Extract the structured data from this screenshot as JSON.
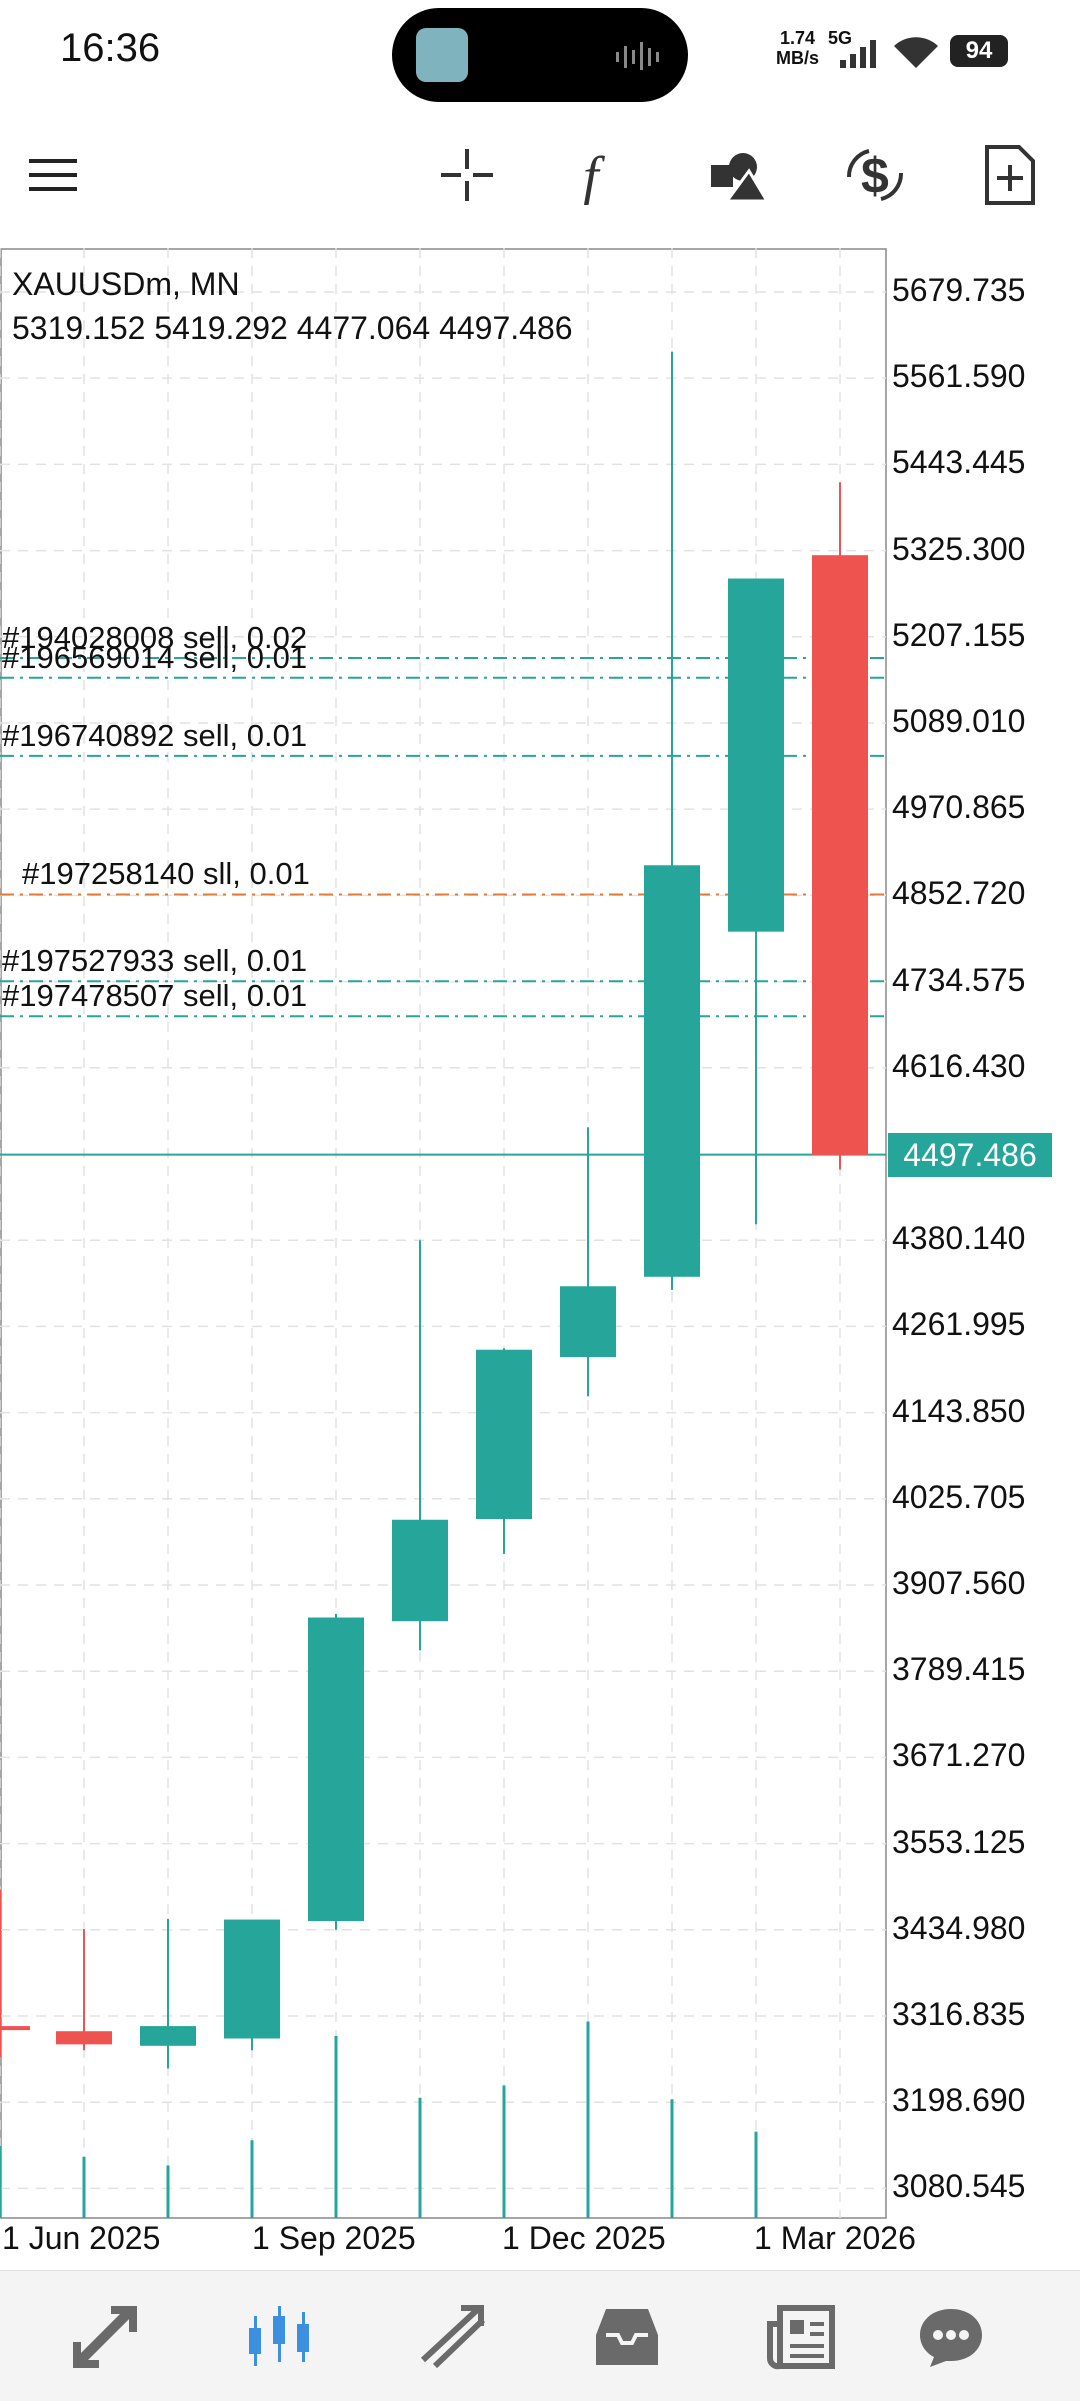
{
  "status_bar": {
    "time": "16:36",
    "net_speed_value": "1.74",
    "net_speed_unit": "MB/s",
    "network": "5G",
    "battery": "94"
  },
  "toolbar": {
    "icons": [
      "menu-icon",
      "crosshair-icon",
      "indicators-icon",
      "objects-icon",
      "timeframe-icon",
      "new-order-icon"
    ]
  },
  "chart": {
    "title": "XAUUSDm, MN",
    "ohlc": "5319.152 5419.292 4477.064 4497.486",
    "current_price": "4497.486",
    "orders": [
      {
        "label": "#194028008 sell, 0.02",
        "price": 5178,
        "kind": "sell"
      },
      {
        "label": "#196569014 sell, 0.01",
        "price": 5151,
        "kind": "sell"
      },
      {
        "label": "#196740892 sell, 0.01",
        "price": 5044,
        "kind": "sell"
      },
      {
        "label": "#197258140 sll, 0.01",
        "price": 4854,
        "kind": "sl"
      },
      {
        "label": "#197527933 sell, 0.01",
        "price": 4735,
        "kind": "sell"
      },
      {
        "label": "#197478507 sell, 0.01",
        "price": 4687,
        "kind": "sell"
      }
    ],
    "colors": {
      "bull": "#26a69a",
      "bear": "#ef5350",
      "grid": "#e2e2e2",
      "sell_line": "#26a69a",
      "sl_line": "#e07b39"
    }
  },
  "chart_data": {
    "type": "candlestick",
    "symbol": "XAUUSDm",
    "timeframe": "MN",
    "y_ticks": [
      "5679.735",
      "5561.590",
      "5443.445",
      "5325.300",
      "5207.155",
      "5089.010",
      "4970.865",
      "4852.720",
      "4734.575",
      "4616.430",
      "4380.140",
      "4261.995",
      "4143.850",
      "4025.705",
      "3907.560",
      "3789.415",
      "3671.270",
      "3553.125",
      "3434.980",
      "3316.835",
      "3198.690",
      "3080.545"
    ],
    "x_labels": [
      "1 Jun 2025",
      "1 Sep 2025",
      "1 Dec 2025",
      "1 Mar 2026"
    ],
    "candles": [
      {
        "month": "2025-04",
        "open": 3303,
        "high": 3490,
        "low": 3260,
        "close": 3299
      },
      {
        "month": "2025-05",
        "open": 3296,
        "high": 3436,
        "low": 3270,
        "close": 3278
      },
      {
        "month": "2025-06",
        "open": 3276,
        "high": 3450,
        "low": 3245,
        "close": 3303
      },
      {
        "month": "2025-07",
        "open": 3286,
        "high": 3440,
        "low": 3270,
        "close": 3449
      },
      {
        "month": "2025-08",
        "open": 3447,
        "high": 3868,
        "low": 3435,
        "close": 3863
      },
      {
        "month": "2025-09",
        "open": 3858,
        "high": 4380,
        "low": 3818,
        "close": 3997
      },
      {
        "month": "2025-10",
        "open": 3998,
        "high": 4232,
        "low": 3950,
        "close": 4230
      },
      {
        "month": "2025-11",
        "open": 4220,
        "high": 4535,
        "low": 4166,
        "close": 4317
      },
      {
        "month": "2025-12",
        "open": 4330,
        "high": 5598,
        "low": 4312,
        "close": 4894
      },
      {
        "month": "2026-01",
        "open": 4803,
        "high": 5270,
        "low": 4402,
        "close": 5287
      },
      {
        "month": "2026-02",
        "open": 5319,
        "high": 5419,
        "low": 4477,
        "close": 4497
      }
    ],
    "volume": [
      {
        "month": "2025-04",
        "value": 1.0
      },
      {
        "month": "2025-05",
        "value": 0.85
      },
      {
        "month": "2025-06",
        "value": 0.73
      },
      {
        "month": "2025-07",
        "value": 1.08
      },
      {
        "month": "2025-08",
        "value": 2.53
      },
      {
        "month": "2025-09",
        "value": 1.67
      },
      {
        "month": "2025-10",
        "value": 1.84
      },
      {
        "month": "2025-11",
        "value": 2.73
      },
      {
        "month": "2025-12",
        "value": 1.65
      },
      {
        "month": "2026-01",
        "value": 1.2
      }
    ],
    "ylim": [
      3040,
      5740
    ],
    "grid": true
  },
  "bottom_nav": {
    "items": [
      "quotes-icon",
      "chart-icon",
      "trade-icon",
      "history-icon",
      "news-icon",
      "messages-icon"
    ],
    "active_index": 1
  }
}
